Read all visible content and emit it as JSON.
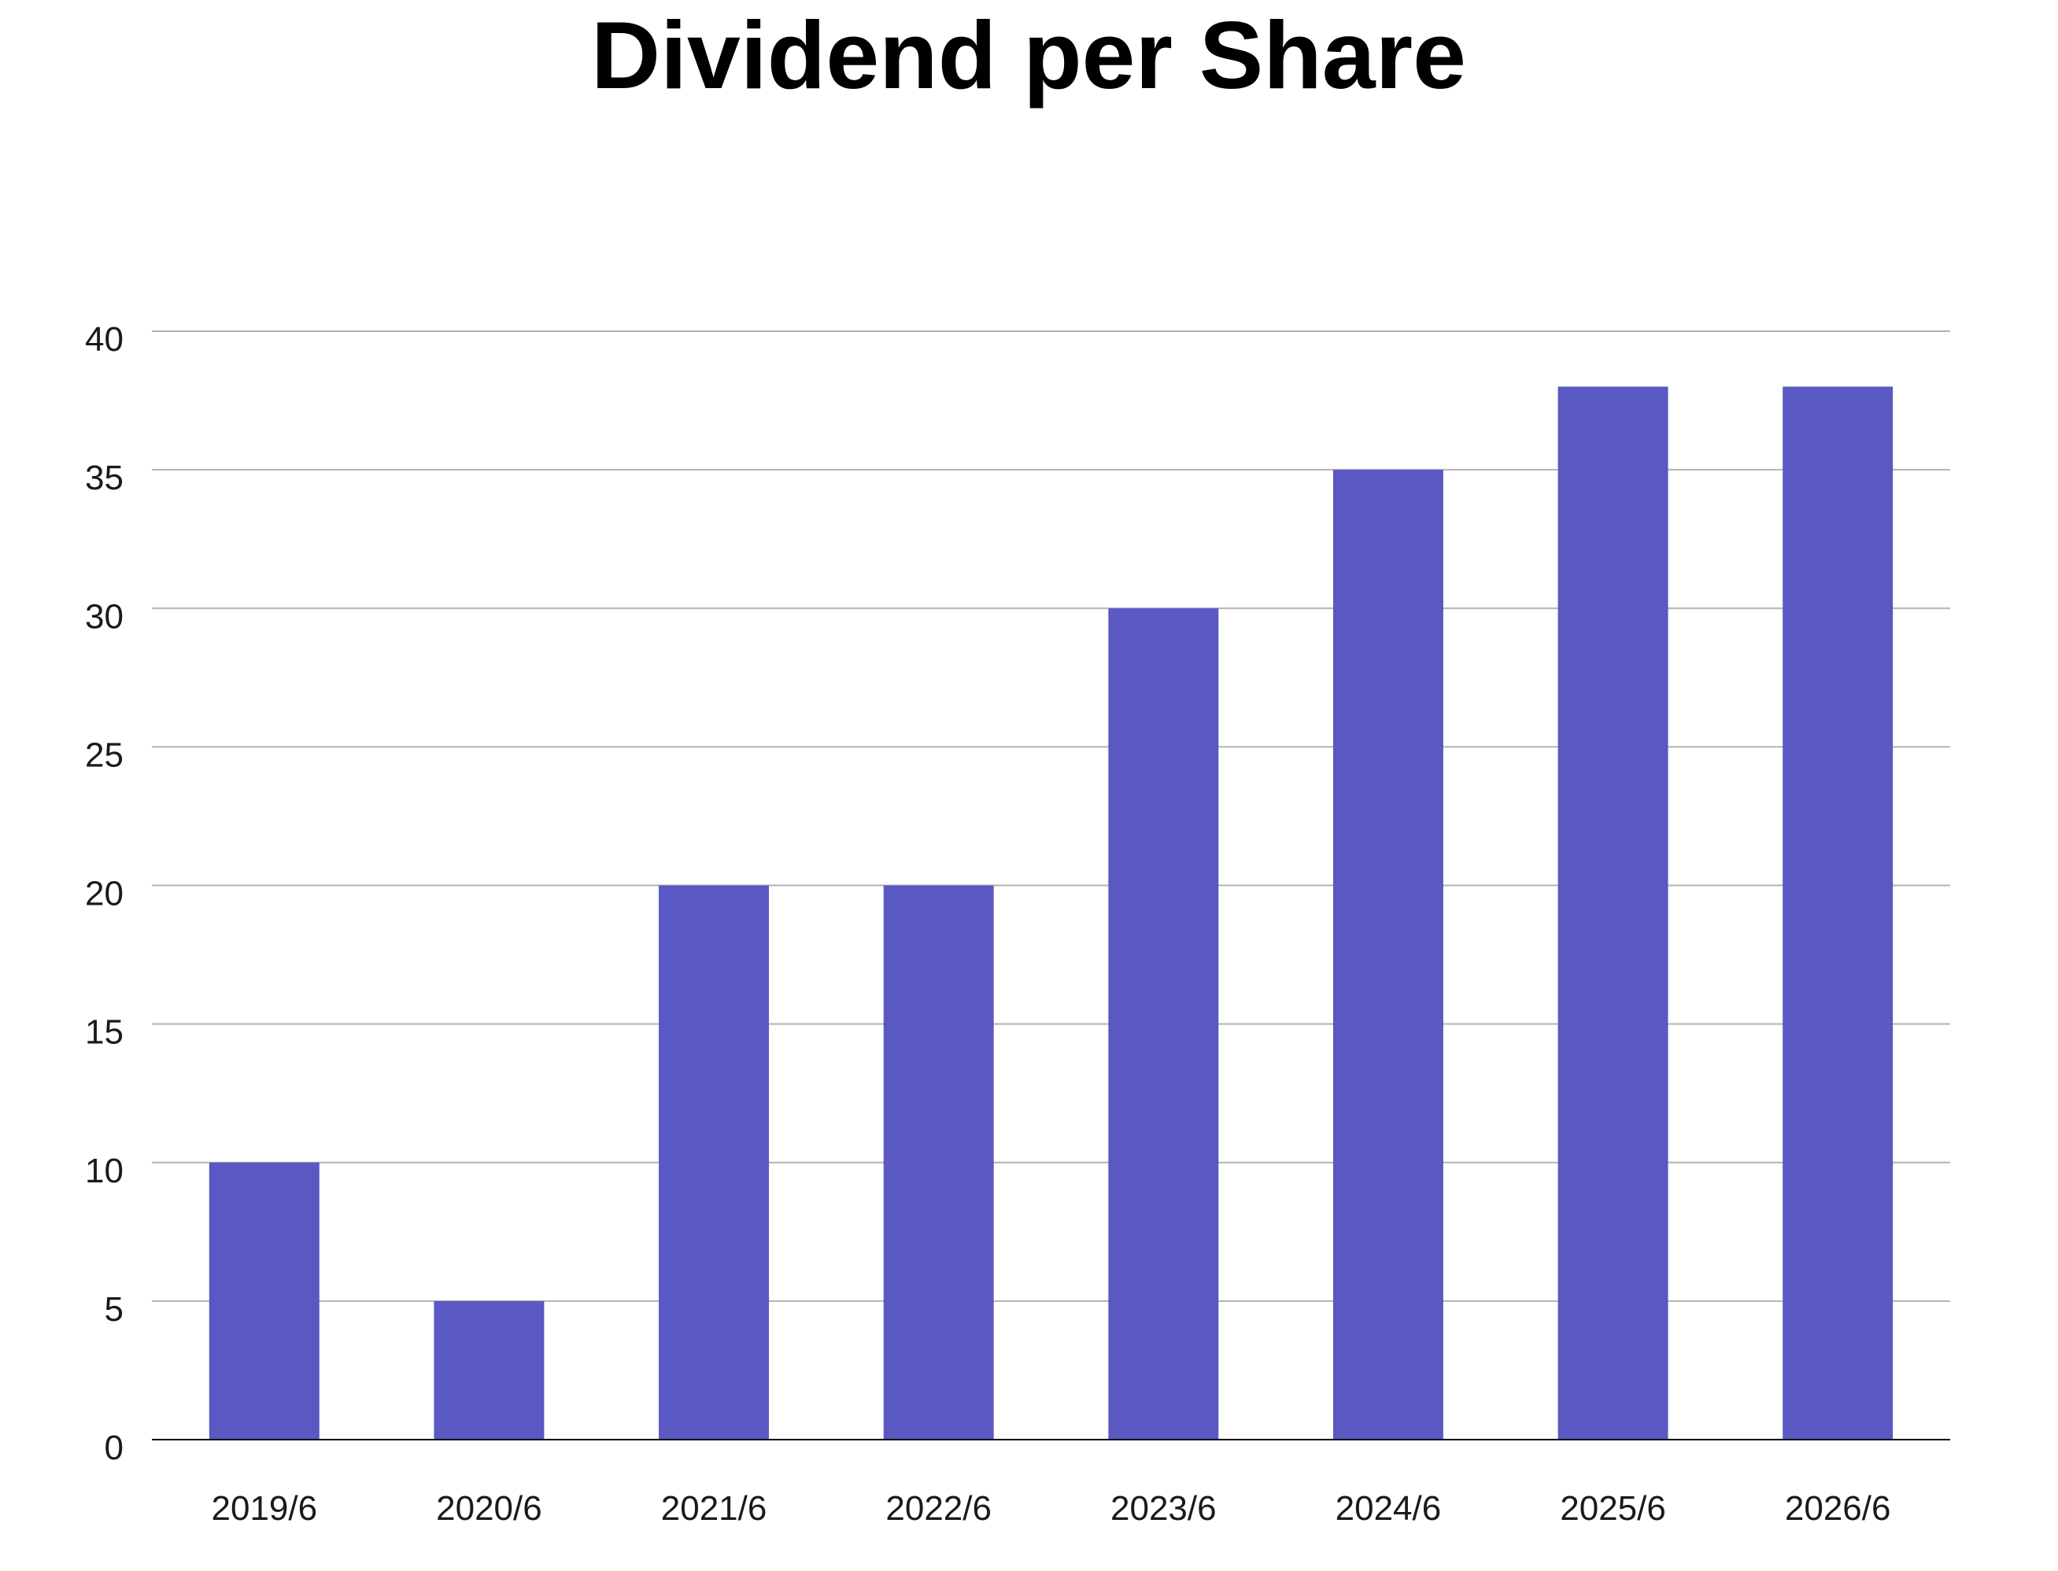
{
  "chart_data": {
    "type": "bar",
    "title": "Dividend per Share",
    "xlabel": "",
    "ylabel": "",
    "categories": [
      "2019/6",
      "2020/6",
      "2021/6",
      "2022/6",
      "2023/6",
      "2024/6",
      "2025/6",
      "2026/6"
    ],
    "values": [
      10,
      5,
      20,
      20,
      30,
      35,
      38,
      38
    ],
    "ylim": [
      0,
      40
    ],
    "yticks": [
      "0",
      "5",
      "10",
      "15",
      "20",
      "25",
      "30",
      "35",
      "40"
    ],
    "grid": true,
    "legend": "none",
    "bar_color": "#5a58c2",
    "grid_color": "#b3b3b3",
    "axis_color": "#000000"
  }
}
